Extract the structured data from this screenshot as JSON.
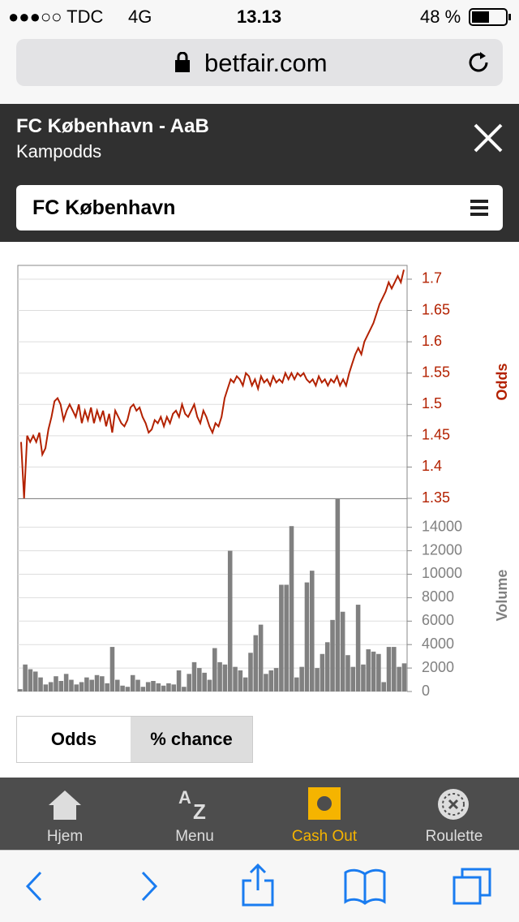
{
  "status": {
    "carrier": "●●●○○ TDC",
    "network": "4G",
    "time": "13.13",
    "battery": "48 %"
  },
  "address": "betfair.com",
  "header": {
    "title": "FC København - AaB",
    "subtitle": "Kampodds"
  },
  "selector": "FC København",
  "chart_data": [
    {
      "type": "line",
      "ylabel": "Odds",
      "color": "#b32100",
      "ylim": [
        1.35,
        1.722
      ],
      "yticks": [
        1.35,
        1.4,
        1.45,
        1.5,
        1.55,
        1.6,
        1.65,
        1.7
      ],
      "grid": true,
      "values": [
        1.44,
        1.35,
        1.45,
        1.44,
        1.45,
        1.44,
        1.455,
        1.42,
        1.43,
        1.46,
        1.48,
        1.505,
        1.51,
        1.5,
        1.475,
        1.49,
        1.5,
        1.49,
        1.48,
        1.5,
        1.47,
        1.49,
        1.475,
        1.495,
        1.47,
        1.49,
        1.475,
        1.49,
        1.465,
        1.485,
        1.455,
        1.49,
        1.48,
        1.47,
        1.465,
        1.475,
        1.495,
        1.5,
        1.49,
        1.495,
        1.48,
        1.47,
        1.455,
        1.46,
        1.475,
        1.47,
        1.48,
        1.465,
        1.48,
        1.47,
        1.485,
        1.49,
        1.48,
        1.5,
        1.485,
        1.48,
        1.49,
        1.5,
        1.48,
        1.47,
        1.49,
        1.48,
        1.465,
        1.455,
        1.47,
        1.465,
        1.48,
        1.51,
        1.525,
        1.54,
        1.535,
        1.545,
        1.54,
        1.53,
        1.55,
        1.545,
        1.53,
        1.54,
        1.525,
        1.545,
        1.535,
        1.54,
        1.53,
        1.545,
        1.535,
        1.54,
        1.535,
        1.55,
        1.54,
        1.55,
        1.54,
        1.55,
        1.545,
        1.55,
        1.54,
        1.535,
        1.54,
        1.53,
        1.545,
        1.535,
        1.54,
        1.53,
        1.54,
        1.535,
        1.545,
        1.53,
        1.54,
        1.53,
        1.55,
        1.565,
        1.58,
        1.59,
        1.58,
        1.6,
        1.61,
        1.62,
        1.63,
        1.645,
        1.66,
        1.67,
        1.68,
        1.695,
        1.685,
        1.695,
        1.705,
        1.695,
        1.715
      ]
    },
    {
      "type": "bar",
      "ylabel": "Volume",
      "color": "#808080",
      "ylim": [
        0,
        16400
      ],
      "yticks": [
        0,
        2000,
        4000,
        6000,
        8000,
        10000,
        12000,
        14000
      ],
      "grid": true,
      "values": [
        200,
        2300,
        1900,
        1700,
        1200,
        600,
        800,
        1300,
        900,
        1500,
        1000,
        600,
        800,
        1200,
        1000,
        1400,
        1300,
        700,
        3800,
        1000,
        500,
        400,
        1400,
        1000,
        400,
        800,
        900,
        700,
        500,
        700,
        600,
        1800,
        400,
        1500,
        2500,
        2000,
        1600,
        1000,
        3700,
        2500,
        2300,
        12000,
        2100,
        1800,
        1200,
        3300,
        4800,
        5700,
        1500,
        1800,
        2000,
        9100,
        9100,
        14100,
        1200,
        2100,
        9300,
        10300,
        2000,
        3200,
        4200,
        6100,
        16400,
        6800,
        3100,
        2100,
        7400,
        2300,
        3600,
        3400,
        3200,
        800,
        3800,
        3800,
        2100,
        2400
      ]
    }
  ],
  "toggle": [
    "Odds",
    "% chance"
  ],
  "tabs": [
    "Hjem",
    "Menu",
    "Cash Out",
    "Roulette"
  ]
}
